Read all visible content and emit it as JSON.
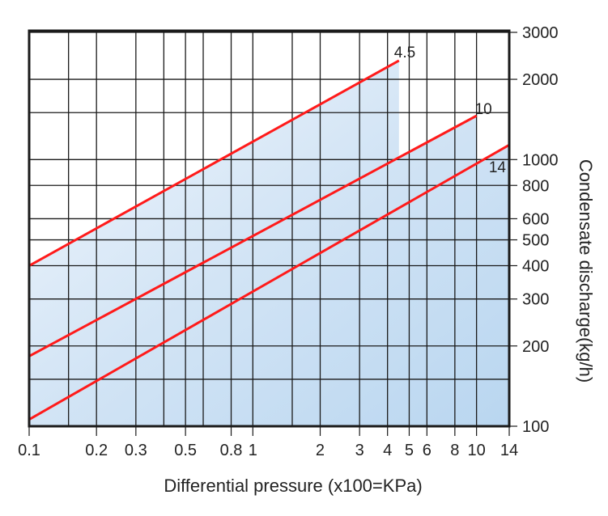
{
  "chart_data": {
    "type": "line",
    "title": "",
    "xlabel": "Differential pressure (x100=KPa)",
    "ylabel": "Condensate discharge(kg/h)",
    "xscale": "log",
    "yscale": "log",
    "xlim": [
      0.1,
      14
    ],
    "ylim": [
      100,
      3000
    ],
    "grid": true,
    "x_ticks": [
      "0.1",
      "0.2",
      "0.3",
      "0.5",
      "0.8",
      "1",
      "2",
      "3",
      "4",
      "5",
      "6",
      "8",
      "10",
      "14"
    ],
    "x_grid": [
      0.1,
      0.15,
      0.2,
      0.3,
      0.4,
      0.5,
      0.6,
      0.8,
      1,
      1.5,
      2,
      3,
      4,
      5,
      6,
      8,
      10,
      14
    ],
    "y_ticks": [
      "100",
      "200",
      "300",
      "400",
      "500",
      "600",
      "800",
      "1000",
      "2000",
      "3000"
    ],
    "y_grid": [
      100,
      150,
      200,
      300,
      400,
      500,
      600,
      800,
      1000,
      1500,
      2000,
      3000
    ],
    "line_color": "#ff1a1a",
    "fill_color": "#bcd8f1",
    "series": [
      {
        "label": "4.5",
        "x": [
          0.1,
          4.5
        ],
        "y": [
          400,
          2350
        ]
      },
      {
        "label": "10",
        "x": [
          0.1,
          10
        ],
        "y": [
          183,
          1460
        ]
      },
      {
        "label": "14",
        "x": [
          0.1,
          14
        ],
        "y": [
          106,
          1135
        ]
      }
    ]
  }
}
